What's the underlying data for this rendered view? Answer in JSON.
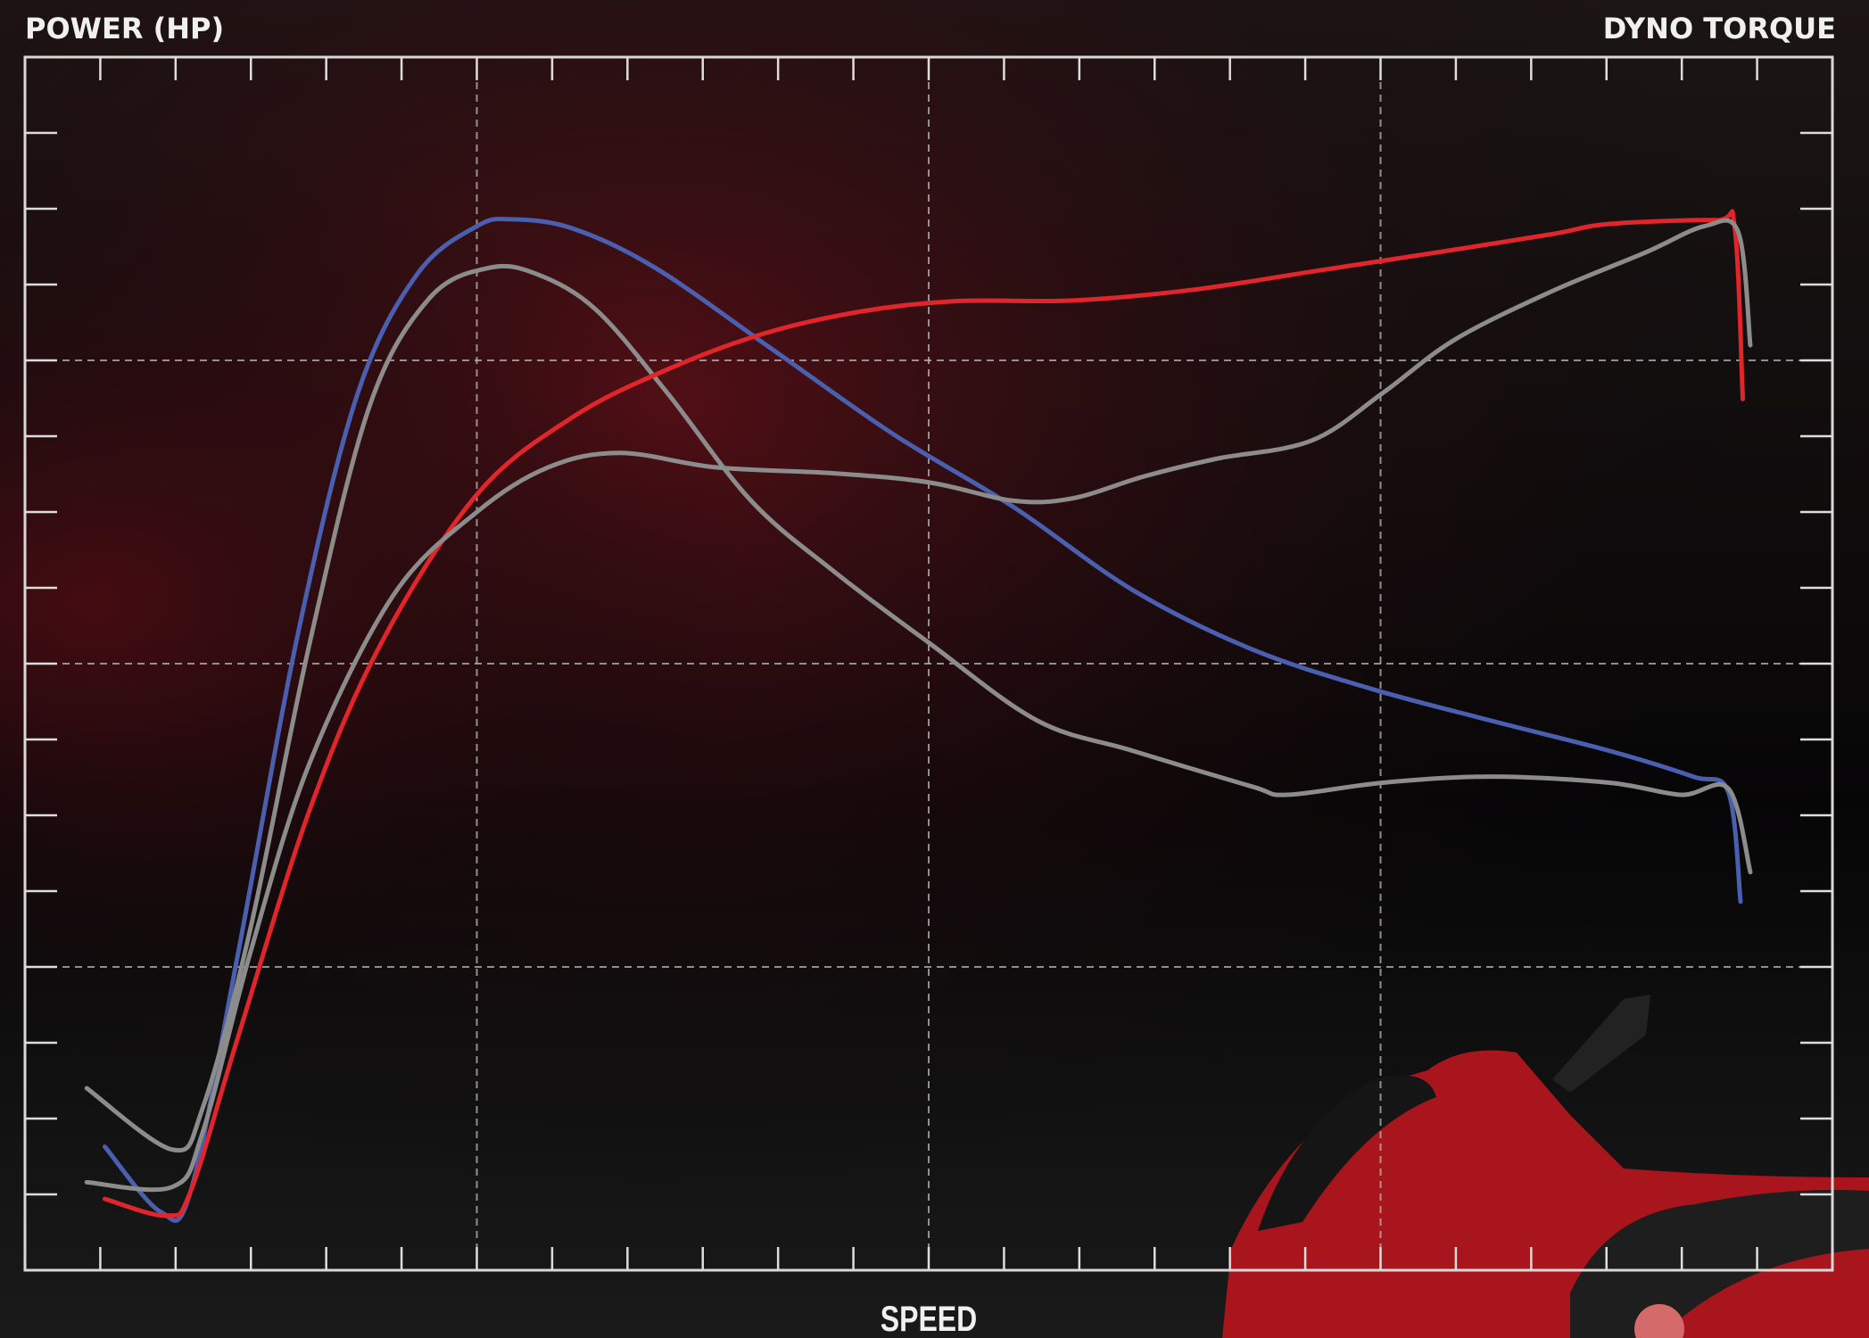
{
  "chart_data": {
    "type": "line",
    "title": "POWER (HP)",
    "right_title": "DYNO TORQUE",
    "x_label": "SPEED",
    "xlim": [
      0,
      24
    ],
    "ylim": [
      0,
      16
    ],
    "xticks": [
      1,
      2,
      3,
      4,
      5,
      6,
      7,
      8,
      9,
      10,
      11,
      12,
      13,
      14,
      15,
      16,
      17,
      18,
      19,
      20,
      21,
      22,
      23
    ],
    "yticks": [
      1,
      2,
      3,
      4,
      5,
      6,
      7,
      8,
      9,
      10,
      11,
      12,
      13,
      14,
      15
    ],
    "x_grid": [
      6,
      12,
      18
    ],
    "y_grid": [
      4,
      8,
      12
    ],
    "series": [
      {
        "color": "#4a5fb0",
        "x": [
          1.06,
          1.8,
          2.2,
          2.83,
          3.63,
          4.42,
          5.21,
          6.0,
          6.47,
          7.27,
          8.37,
          9.96,
          11.54,
          13.12,
          14.71,
          16.29,
          17.87,
          19.46,
          21.04,
          22.15,
          22.62,
          22.78
        ],
        "values": [
          1.63,
          0.77,
          1.04,
          4.18,
          8.42,
          11.57,
          13.14,
          13.77,
          13.86,
          13.74,
          13.22,
          12.12,
          11.02,
          10.07,
          8.97,
          8.19,
          7.67,
          7.25,
          6.85,
          6.51,
          6.3,
          4.86
        ]
      },
      {
        "color": "#8c8c8c",
        "x": [
          0.82,
          1.96,
          2.36,
          2.99,
          3.78,
          4.58,
          5.37,
          6.16,
          6.79,
          7.58,
          8.53,
          9.64,
          10.75,
          12.01,
          13.44,
          14.71,
          16.29,
          16.76,
          18.03,
          19.46,
          21.04,
          21.99,
          22.62,
          22.91
        ],
        "values": [
          2.4,
          1.59,
          2.14,
          4.49,
          8.27,
          11.41,
          12.82,
          13.22,
          13.14,
          12.67,
          11.57,
          10.15,
          9.21,
          8.27,
          7.25,
          6.85,
          6.38,
          6.27,
          6.43,
          6.51,
          6.43,
          6.27,
          6.35,
          5.25
        ]
      },
      {
        "color": "#e0252b",
        "x": [
          1.06,
          1.88,
          2.2,
          2.83,
          3.78,
          4.73,
          6.0,
          7.27,
          8.53,
          9.8,
          11.07,
          12.33,
          13.91,
          15.5,
          17.08,
          18.66,
          20.25,
          21.04,
          22.46,
          22.7,
          22.81
        ],
        "values": [
          0.94,
          0.72,
          1.04,
          3.08,
          6.07,
          8.27,
          10.23,
          11.25,
          11.88,
          12.35,
          12.64,
          12.78,
          12.79,
          12.93,
          13.17,
          13.41,
          13.66,
          13.8,
          13.85,
          13.77,
          11.49
        ]
      },
      {
        "color": "#8c8c8c",
        "x": [
          0.82,
          1.96,
          2.36,
          2.99,
          3.78,
          4.89,
          6.0,
          6.95,
          7.9,
          9.17,
          10.75,
          12.01,
          13.12,
          13.91,
          14.86,
          15.81,
          17.08,
          18.03,
          18.98,
          20.25,
          21.51,
          22.3,
          22.75,
          22.91
        ],
        "values": [
          1.16,
          1.1,
          1.82,
          4.18,
          6.69,
          8.9,
          10.0,
          10.59,
          10.78,
          10.59,
          10.51,
          10.39,
          10.15,
          10.18,
          10.47,
          10.7,
          10.94,
          11.57,
          12.27,
          12.9,
          13.42,
          13.77,
          13.69,
          12.2
        ]
      }
    ]
  }
}
